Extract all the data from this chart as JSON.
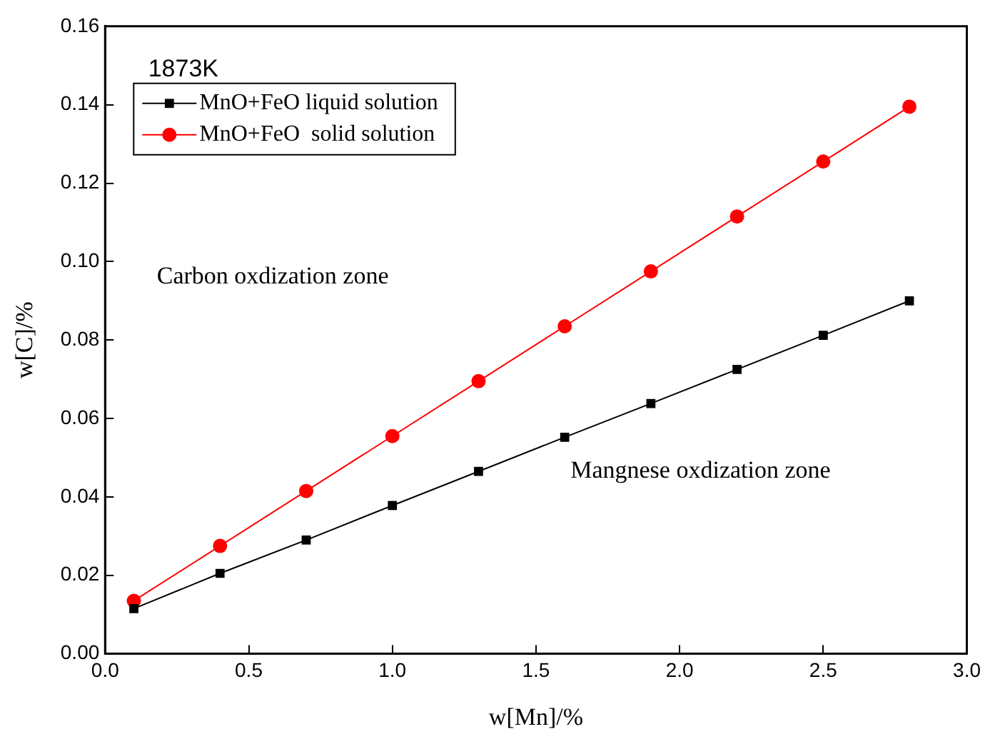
{
  "chart_data": {
    "type": "line",
    "xlabel": "w[Mn]/%",
    "ylabel": "w[C]/%",
    "x": [
      0.1,
      0.4,
      0.7,
      1.0,
      1.3,
      1.6,
      1.9,
      2.2,
      2.5,
      2.8
    ],
    "series": [
      {
        "name": "MnO+FeO liquid solution",
        "color": "#000000",
        "marker": "square",
        "values": [
          0.0115,
          0.0205,
          0.029,
          0.0378,
          0.0465,
          0.0552,
          0.0638,
          0.0725,
          0.0812,
          0.09
        ]
      },
      {
        "name": "MnO+FeO  solid solution",
        "color": "#ff0000",
        "marker": "circle",
        "values": [
          0.0135,
          0.0275,
          0.0415,
          0.0555,
          0.0695,
          0.0835,
          0.0975,
          0.1115,
          0.1255,
          0.1395
        ]
      }
    ],
    "xlim": [
      0,
      3
    ],
    "ylim": [
      0,
      0.16
    ],
    "xticks": [
      {
        "value": 0,
        "label": "0.0"
      },
      {
        "value": 0.5,
        "label": "0.5"
      },
      {
        "value": 1,
        "label": "1.0"
      },
      {
        "value": 1.5,
        "label": "1.5"
      },
      {
        "value": 2,
        "label": "2.0"
      },
      {
        "value": 2.5,
        "label": "2.5"
      },
      {
        "value": 3,
        "label": "3.0"
      }
    ],
    "yticks": [
      {
        "value": 0,
        "label": "0.00"
      },
      {
        "value": 0.02,
        "label": "0.02"
      },
      {
        "value": 0.04,
        "label": "0.04"
      },
      {
        "value": 0.06,
        "label": "0.06"
      },
      {
        "value": 0.08,
        "label": "0.08"
      },
      {
        "value": 0.1,
        "label": "0.10"
      },
      {
        "value": 0.12,
        "label": "0.12"
      },
      {
        "value": 0.14,
        "label": "0.14"
      },
      {
        "value": 0.16,
        "label": "0.16"
      }
    ],
    "annotations": [
      "1873K",
      "Carbon oxdization zone",
      "Mangnese oxdization zone"
    ],
    "legend": "top left",
    "grid": false,
    "line_style": "solid"
  }
}
